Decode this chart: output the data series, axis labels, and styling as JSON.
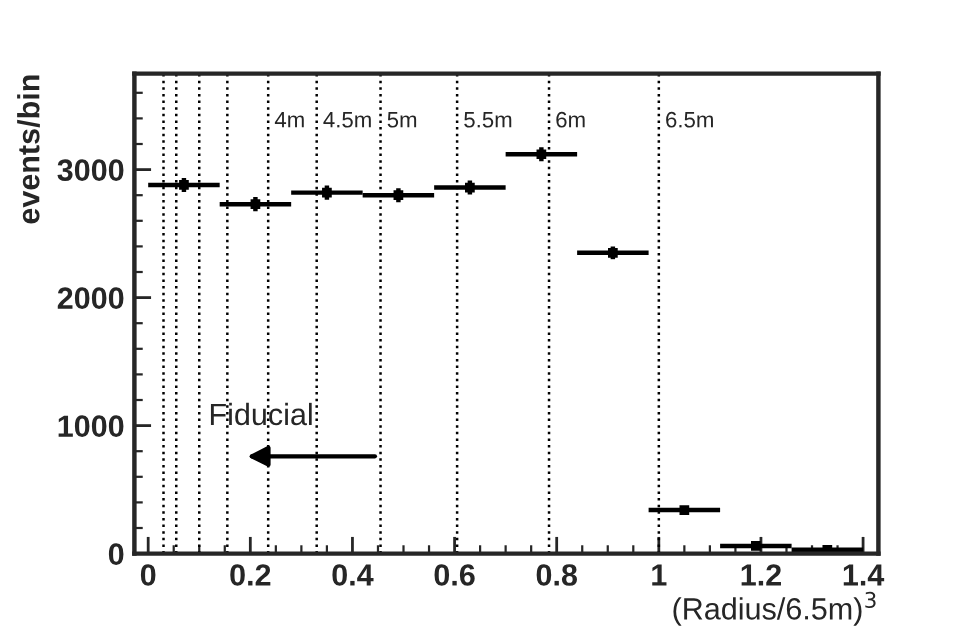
{
  "chart_data": {
    "type": "scatter",
    "xlabel": "(Radius/6.5m)$^{3}$",
    "ylabel": "events/bin",
    "x": [
      0.07,
      0.21,
      0.35,
      0.49,
      0.63,
      0.77,
      0.91,
      1.05,
      1.19,
      1.33
    ],
    "series": [
      {
        "color": "#000000",
        "values": [
          2880,
          2730,
          2820,
          2800,
          2860,
          3120,
          2350,
          340,
          60,
          30
        ],
        "errors": [
          55,
          55,
          55,
          55,
          55,
          55,
          50,
          20,
          10,
          8
        ],
        "xerrors": [
          0.07,
          0.07,
          0.07,
          0.07,
          0.07,
          0.07,
          0.07,
          0.07,
          0.07,
          0.07
        ]
      }
    ],
    "marker": "square",
    "xlim": [
      -0.027,
      1.43
    ],
    "ylim": [
      0,
      3750
    ],
    "xticks": [
      0,
      0.2,
      0.4,
      0.6,
      0.8,
      1,
      1.2,
      1.4
    ],
    "yticks": [
      0,
      1000,
      2000,
      3000
    ],
    "ref_lines": [
      {
        "axis": "x",
        "value": 0.03,
        "label": null,
        "line_style": "dotted"
      },
      {
        "axis": "x",
        "value": 0.055,
        "label": null,
        "line_style": "dotted"
      },
      {
        "axis": "x",
        "value": 0.1,
        "label": null,
        "line_style": "dotted"
      },
      {
        "axis": "x",
        "value": 0.155,
        "label": null,
        "line_style": "dotted"
      },
      {
        "axis": "x",
        "value": 0.235,
        "label": "4m",
        "line_style": "dotted"
      },
      {
        "axis": "x",
        "value": 0.33,
        "label": "4.5m",
        "line_style": "dotted"
      },
      {
        "axis": "x",
        "value": 0.455,
        "label": "5m",
        "line_style": "dotted"
      },
      {
        "axis": "x",
        "value": 0.605,
        "label": "5.5m",
        "line_style": "dotted"
      },
      {
        "axis": "x",
        "value": 0.785,
        "label": "6m",
        "line_style": "dotted"
      },
      {
        "axis": "x",
        "value": 1.0,
        "label": "6.5m",
        "line_style": "dotted"
      }
    ],
    "annotations": [
      {
        "text": "Fiducial",
        "x": 0.455,
        "y": 760
      }
    ],
    "grid": false,
    "legend": false
  }
}
